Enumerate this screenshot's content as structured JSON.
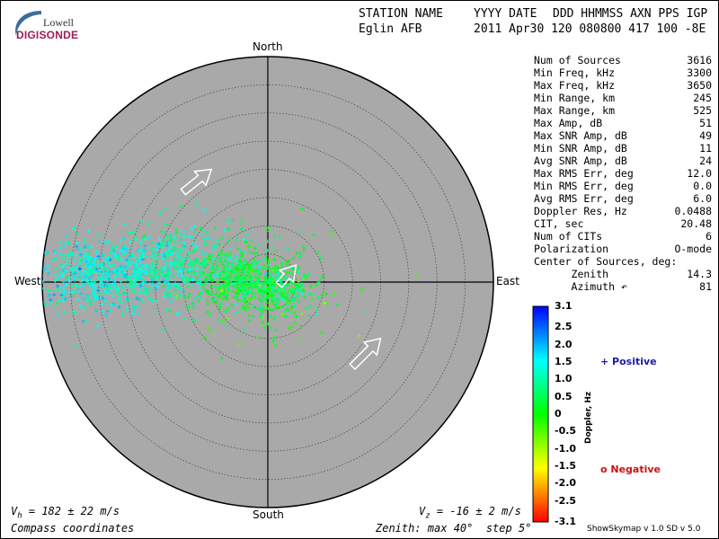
{
  "logo": {
    "top": "Lowell",
    "bottom": "DIGISONDE",
    "accent": "#9b1d5a"
  },
  "header": {
    "row1": [
      "STATION NAME",
      "YYYY DATE",
      "DDD HHMMSS AXN PPS IGP"
    ],
    "row2": [
      "Eglin AFB",
      "2011 Apr30 120 080800 417 100 -8E"
    ]
  },
  "stats": [
    {
      "label": "Num of Sources",
      "value": "3616"
    },
    {
      "label": "Min Freq, kHz",
      "value": "3300"
    },
    {
      "label": "Max Freq, kHz",
      "value": "3650"
    },
    {
      "label": "Min Range, km",
      "value": "245"
    },
    {
      "label": "Max Range, km",
      "value": "525"
    },
    {
      "label": "Max Amp, dB",
      "value": "51"
    },
    {
      "label": "Max SNR Amp, dB",
      "value": "49"
    },
    {
      "label": "Min SNR Amp, dB",
      "value": "11"
    },
    {
      "label": "Avg SNR Amp, dB",
      "value": "24"
    },
    {
      "label": "Max RMS Err, deg",
      "value": "12.0"
    },
    {
      "label": "Min RMS Err, deg",
      "value": "0.0"
    },
    {
      "label": "Avg RMS Err, deg",
      "value": "6.0"
    },
    {
      "label": "Doppler Res, Hz",
      "value": "0.0488"
    },
    {
      "label": "CIT, sec",
      "value": "20.48"
    },
    {
      "label": "Num of CITs",
      "value": "6"
    },
    {
      "label": "Polarization",
      "value": "O-mode"
    },
    {
      "label": "Center of Sources, deg:",
      "value": ""
    },
    {
      "label": "      Zenith",
      "value": "14.3"
    },
    {
      "label": "      Azimuth ↶",
      "value": "81"
    }
  ],
  "bottom": {
    "vh": "V  = 182 ± 22 m/s",
    "vh_sub": "h",
    "vz": "V  = -16 ± 2 m/s",
    "vz_sub": "z",
    "coords": "Compass coordinates",
    "zenith": "Zenith: max 40°  step 5°",
    "version": "ShowSkymap v 1.0   SD v 5.0"
  },
  "legend": {
    "positive": "+ Positive",
    "negative": "o Negative"
  },
  "chart_data": {
    "type": "scatter",
    "projection": "polar skymap (zenith angle vs azimuth)",
    "directions": {
      "north": "North",
      "south": "South",
      "east": "East",
      "west": "West"
    },
    "zenith_max_deg": 40,
    "zenith_step_deg": 5,
    "grid": "dotted rings",
    "background": "#a9a9a9",
    "num_sources": 3616,
    "clusters": [
      {
        "center_x_deg": -30,
        "center_y_deg": 1.5,
        "spread_x": 7,
        "spread_y": 3.2,
        "count": 650,
        "doppler_mean": 1.4
      },
      {
        "center_x_deg": -16,
        "center_y_deg": 2.5,
        "spread_x": 5.5,
        "spread_y": 3.5,
        "count": 380,
        "doppler_mean": 1.1
      },
      {
        "center_x_deg": -5,
        "center_y_deg": 0.5,
        "spread_x": 3.5,
        "spread_y": 2.4,
        "count": 320,
        "doppler_mean": 0.3
      },
      {
        "center_x_deg": 1.5,
        "center_y_deg": -1.5,
        "spread_x": 3,
        "spread_y": 2,
        "count": 220,
        "doppler_mean": 0.5
      },
      {
        "center_x_deg": -5,
        "center_y_deg": 4,
        "spread_x": 7,
        "spread_y": 4,
        "count": 140,
        "doppler_mean": 0.6
      },
      {
        "center_x_deg": 0,
        "center_y_deg": -4,
        "spread_x": 7,
        "spread_y": 4,
        "count": 110,
        "doppler_mean": 0.0
      }
    ],
    "motion_arrows": [
      {
        "from": [
          -15,
          16
        ],
        "to": [
          -10,
          20
        ]
      },
      {
        "from": [
          2,
          -0.5
        ],
        "to": [
          5,
          3
        ]
      },
      {
        "from": [
          15,
          -15
        ],
        "to": [
          20,
          -10
        ]
      }
    ],
    "colorbar": {
      "label": "Doppler, Hz",
      "min": -3.1,
      "max": 3.1,
      "ticks": [
        "3.1",
        "2.5",
        "2.0",
        "1.5",
        "1.0",
        "0.5",
        "0",
        "-0.5",
        "-1.0",
        "-1.5",
        "-2.0",
        "-2.5",
        "-3.1"
      ],
      "colors": [
        "#0000ff",
        "#00ffff",
        "#00ff00",
        "#ffff00",
        "#ff0000"
      ]
    }
  }
}
